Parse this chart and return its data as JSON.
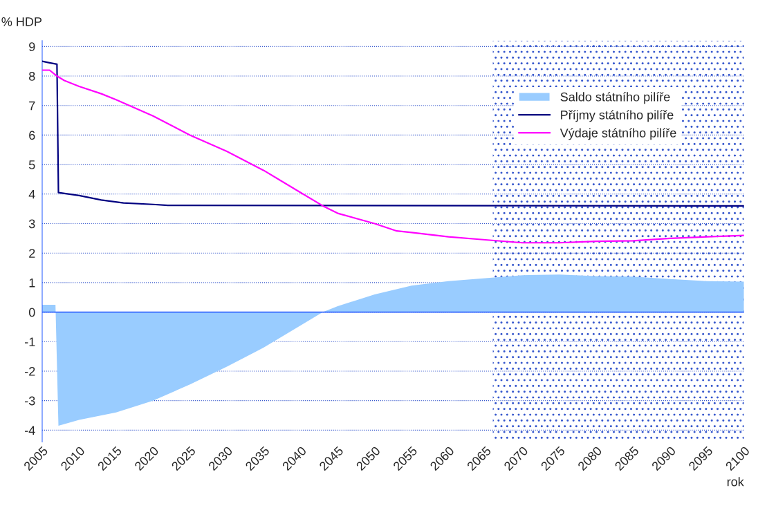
{
  "chart_data": {
    "type": "line",
    "xlabel": "rok",
    "ylabel": "% HDP",
    "xlim": [
      2005,
      2100
    ],
    "xticks": [
      2005,
      2010,
      2015,
      2020,
      2025,
      2030,
      2035,
      2040,
      2045,
      2050,
      2055,
      2060,
      2065,
      2070,
      2075,
      2080,
      2085,
      2090,
      2095,
      2100
    ],
    "ylim": [
      -4.4,
      9.2
    ],
    "yticks": [
      -4,
      -3,
      -2,
      -1,
      0,
      1,
      2,
      3,
      4,
      5,
      6,
      7,
      8,
      9
    ],
    "grid": "y",
    "legend": "top right",
    "series": [
      {
        "name": "Saldo státního pilíře",
        "type": "area",
        "color": "#99ccff",
        "x": [
          2005,
          2006.8,
          2007.2,
          2010,
          2015,
          2020,
          2025,
          2030,
          2035,
          2040,
          2043,
          2045,
          2050,
          2055,
          2060,
          2065,
          2070,
          2075,
          2080,
          2085,
          2090,
          2095,
          2100
        ],
        "values": [
          0.25,
          0.25,
          -3.85,
          -3.65,
          -3.4,
          -3.0,
          -2.45,
          -1.85,
          -1.2,
          -0.45,
          0.0,
          0.2,
          0.6,
          0.9,
          1.05,
          1.15,
          1.25,
          1.27,
          1.22,
          1.2,
          1.12,
          1.05,
          1.03
        ]
      },
      {
        "name": "Příjmy státního pilíře",
        "color": "#000080",
        "x": [
          2005,
          2006,
          2007,
          2007.2,
          2010,
          2013,
          2016,
          2020,
          2022,
          2100
        ],
        "values": [
          8.5,
          8.45,
          8.4,
          4.05,
          3.95,
          3.8,
          3.7,
          3.65,
          3.62,
          3.6
        ]
      },
      {
        "name": "Výdaje státního pilíře",
        "color": "#ff00ff",
        "x": [
          2005,
          2006,
          2007,
          2008,
          2010,
          2013,
          2015,
          2020,
          2025,
          2030,
          2035,
          2040,
          2043,
          2045,
          2050,
          2053,
          2055,
          2060,
          2065,
          2070,
          2075,
          2080,
          2085,
          2090,
          2095,
          2100
        ],
        "values": [
          8.2,
          8.2,
          8.0,
          7.85,
          7.65,
          7.4,
          7.2,
          6.65,
          6.0,
          5.45,
          4.8,
          4.05,
          3.6,
          3.35,
          3.0,
          2.75,
          2.7,
          2.55,
          2.45,
          2.35,
          2.35,
          2.4,
          2.42,
          2.5,
          2.55,
          2.6
        ]
      }
    ],
    "ref_lines": [
      {
        "axis": "y",
        "value": 0,
        "color": "#3366ff"
      }
    ],
    "bands": [
      {
        "axis": "x",
        "from": 2066,
        "to": 2100,
        "color": "#3355cc"
      }
    ]
  }
}
